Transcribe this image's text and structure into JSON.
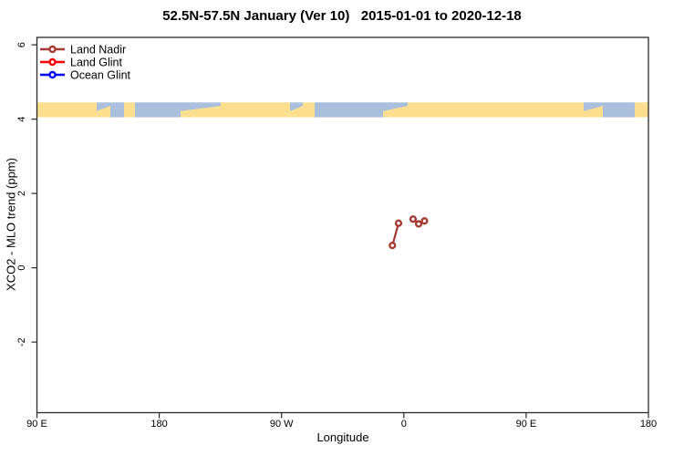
{
  "title": "52.5N-57.5N January (Ver 10)   2015-01-01 to 2020-12-18",
  "colors": {
    "land": "#FBDF8F",
    "ocean": "#A9BFDC",
    "land_nadir": "#A63A32",
    "land_glint": "#FF0000",
    "ocean_glint": "#0000FF",
    "axis": "#2a2a2a",
    "text": "#000000"
  },
  "legend": {
    "position": "top-left",
    "items": [
      {
        "label": "Land Nadir",
        "color": "#A63A32",
        "marker": "open-circle-on-line"
      },
      {
        "label": "Land Glint",
        "color": "#FF0000",
        "marker": "open-circle-on-line"
      },
      {
        "label": "Ocean Glint",
        "color": "#0000FF",
        "marker": "open-circle-on-line"
      }
    ]
  },
  "chart_data": {
    "type": "line",
    "title": "52.5N-57.5N January (Ver 10)   2015-01-01 to 2020-12-18",
    "xlabel": "Longitude",
    "ylabel": "XCO2 - MLO trend (ppm)",
    "xlim": [
      90,
      540
    ],
    "ylim": [
      -3.9,
      6.2
    ],
    "grid": false,
    "x_ticks": [
      {
        "value": 90,
        "label": "90 E"
      },
      {
        "value": 180,
        "label": "180"
      },
      {
        "value": 270,
        "label": "90 W"
      },
      {
        "value": 360,
        "label": "0"
      },
      {
        "value": 450,
        "label": "90 E"
      },
      {
        "value": 540,
        "label": "180"
      }
    ],
    "y_ticks": [
      {
        "value": 6,
        "label": "6"
      },
      {
        "value": 4,
        "label": "4"
      },
      {
        "value": 2,
        "label": "2"
      },
      {
        "value": 0,
        "label": "0"
      },
      {
        "value": -2,
        "label": "-2"
      }
    ],
    "series": [
      {
        "name": "Land Nadir",
        "color": "#A63A32",
        "marker": "open-circle",
        "segments": [
          {
            "points": [
              {
                "lon": -8.4,
                "plot_x": 351.6,
                "y": 0.6
              },
              {
                "lon": -3.9,
                "plot_x": 356.1,
                "y": 1.2
              }
            ]
          },
          {
            "points": [
              {
                "lon": 6.8,
                "plot_x": 366.8,
                "y": 1.31
              },
              {
                "lon": 10.9,
                "plot_x": 370.9,
                "y": 1.18
              },
              {
                "lon": 15.2,
                "plot_x": 375.2,
                "y": 1.26
              }
            ]
          }
        ]
      },
      {
        "name": "Land Glint",
        "color": "#FF0000",
        "marker": "open-circle",
        "segments": []
      },
      {
        "name": "Ocean Glint",
        "color": "#0000FF",
        "marker": "open-circle",
        "segments": []
      }
    ],
    "map_band": {
      "description": "world-map latitude strip 52.5N-57.5N drawn across plot",
      "y_top": 4.45,
      "y_bottom": 4.05,
      "land_color": "#FBDF8F",
      "ocean_color": "#A9BFDC",
      "segments": [
        {
          "start": 0,
          "end": 9.77,
          "type": "land"
        },
        {
          "start": 9.77,
          "end": 12.01,
          "type": "mix"
        },
        {
          "start": 12.01,
          "end": 14.24,
          "type": "ocean"
        },
        {
          "start": 14.24,
          "end": 16.03,
          "type": "land"
        },
        {
          "start": 16.03,
          "end": 23.49,
          "type": "ocean"
        },
        {
          "start": 23.49,
          "end": 30.05,
          "type": "mix"
        },
        {
          "start": 30.05,
          "end": 41.39,
          "type": "land"
        },
        {
          "start": 41.39,
          "end": 43.48,
          "type": "mix"
        },
        {
          "start": 43.48,
          "end": 45.41,
          "type": "land"
        },
        {
          "start": 45.41,
          "end": 56.6,
          "type": "ocean"
        },
        {
          "start": 56.6,
          "end": 60.63,
          "type": "mix"
        },
        {
          "start": 60.63,
          "end": 89.41,
          "type": "land"
        },
        {
          "start": 89.41,
          "end": 92.54,
          "type": "mix"
        },
        {
          "start": 92.54,
          "end": 97.76,
          "type": "ocean"
        },
        {
          "start": 97.76,
          "end": 100,
          "type": "land"
        }
      ]
    }
  }
}
